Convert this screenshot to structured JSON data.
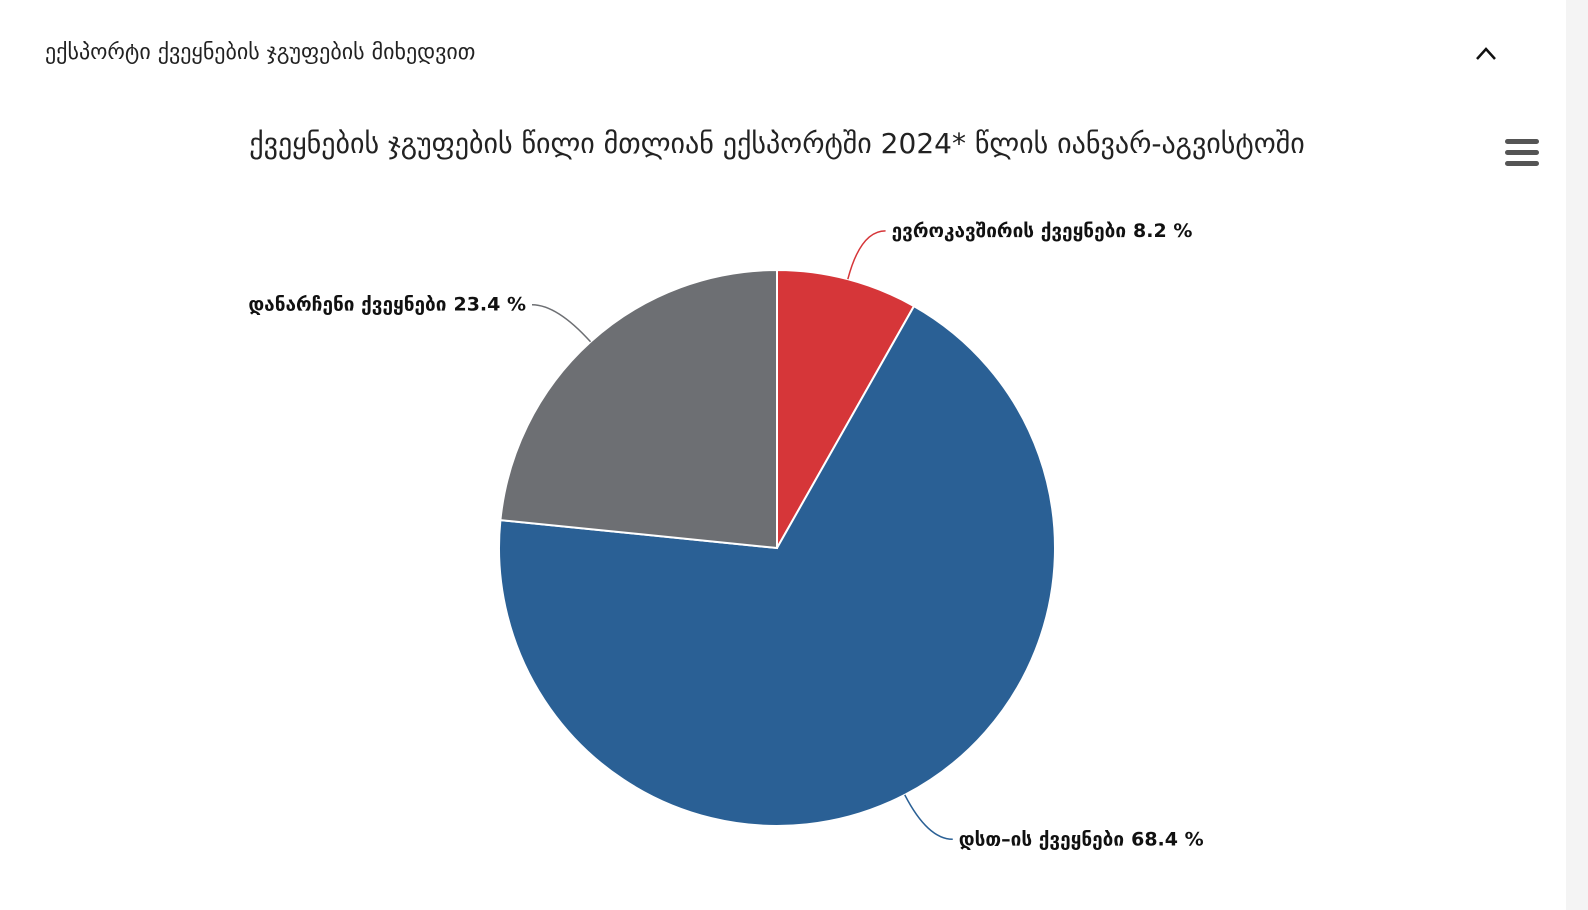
{
  "section_title": "ექსპორტი ქვეყნების ჯგუფების მიხედვით",
  "chart_data": {
    "type": "pie",
    "title": "ქვეყნების ჯგუფების წილი მთლიან ექსპორტში 2024* წლის იანვარ-აგვისტოში",
    "categories": [
      "ევროკავშირის ქვეყნები",
      "დსთ–ის ქვეყნები",
      "დანარჩენი ქვეყნები"
    ],
    "values": [
      8.2,
      68.4,
      23.4
    ],
    "value_labels": [
      "8.2 %",
      "68.4 %",
      "23.4 %"
    ],
    "colors": [
      "#d63639",
      "#2a6095",
      "#6d6f73"
    ]
  }
}
